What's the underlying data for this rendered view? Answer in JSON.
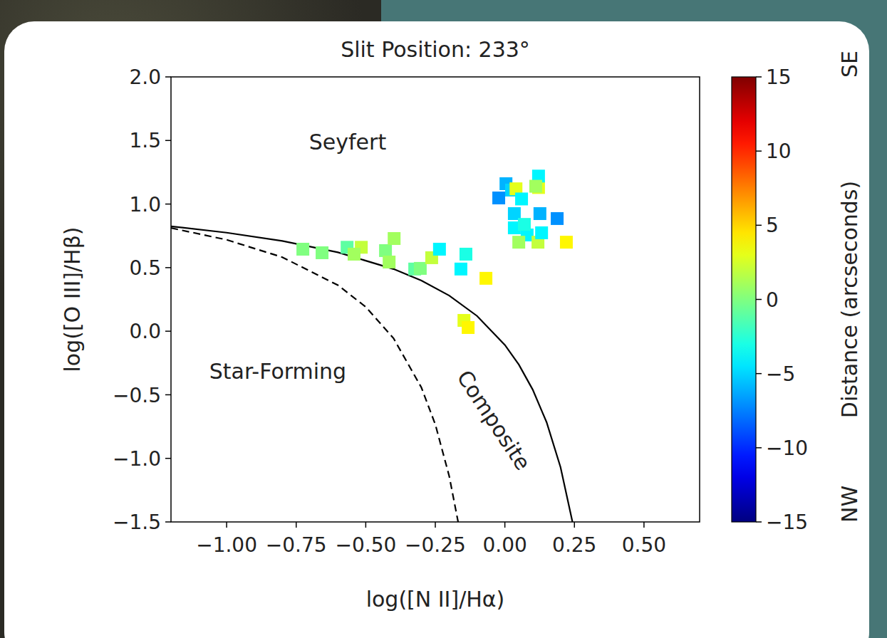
{
  "chart_data": {
    "type": "scatter",
    "title": "Slit Position: 233°",
    "x_label": "log([N II]/Hα)",
    "y_label": "log([O III]/Hβ)",
    "xlim": [
      -1.2,
      0.7
    ],
    "ylim": [
      -1.5,
      2.0
    ],
    "xticks": [
      {
        "value": -1.0,
        "label": "−1.00"
      },
      {
        "value": -0.75,
        "label": "−0.75"
      },
      {
        "value": -0.5,
        "label": "−0.50"
      },
      {
        "value": -0.25,
        "label": "−0.25"
      },
      {
        "value": 0.0,
        "label": "0.00"
      },
      {
        "value": 0.25,
        "label": "0.25"
      },
      {
        "value": 0.5,
        "label": "0.50"
      }
    ],
    "yticks": [
      {
        "value": -1.5,
        "label": "−1.5"
      },
      {
        "value": -1.0,
        "label": "−1.0"
      },
      {
        "value": -0.5,
        "label": "−0.5"
      },
      {
        "value": 0.0,
        "label": "0.0"
      },
      {
        "value": 0.5,
        "label": "0.5"
      },
      {
        "value": 1.0,
        "label": "1.0"
      },
      {
        "value": 1.5,
        "label": "1.5"
      },
      {
        "value": 2.0,
        "label": "2.0"
      }
    ],
    "grid": false,
    "annotations": [
      {
        "text": "Seyfert",
        "x": -0.565,
        "y": 1.485
      },
      {
        "text": "Star-Forming",
        "x": -0.816,
        "y": -0.318
      },
      {
        "text": "Composite",
        "x": -0.04,
        "y": -0.7
      }
    ],
    "series": [
      {
        "type": "line",
        "line_style": "solid",
        "color": "#000000",
        "x": [
          -1.2,
          -1.0,
          -0.8,
          -0.6,
          -0.4,
          -0.3,
          -0.2,
          -0.1,
          0.0,
          0.05,
          0.1,
          0.15,
          0.2,
          0.243
        ],
        "values": [
          0.825,
          0.775,
          0.71,
          0.62,
          0.489,
          0.398,
          0.28,
          0.12,
          -0.108,
          -0.262,
          -0.459,
          -0.716,
          -1.069,
          -1.5
        ]
      },
      {
        "type": "line",
        "line_style": "dashed",
        "color": "#000000",
        "x": [
          -1.2,
          -1.0,
          -0.8,
          -0.6,
          -0.5,
          -0.4,
          -0.3,
          -0.25,
          -0.2,
          -0.168
        ],
        "values": [
          0.812,
          0.719,
          0.582,
          0.362,
          0.191,
          -0.056,
          -0.443,
          -0.733,
          -1.14,
          -1.5
        ]
      },
      {
        "type": "scatter",
        "marker": "square",
        "x": [
          -0.726,
          -0.657,
          -0.567,
          -0.516,
          -0.542,
          -0.429,
          -0.398,
          -0.416,
          -0.324,
          -0.304,
          -0.263,
          -0.235,
          -0.14,
          -0.158,
          -0.068,
          -0.147,
          -0.132,
          0.004,
          -0.022,
          0.024,
          0.04,
          0.06,
          0.121,
          0.121,
          0.111,
          0.034,
          0.034,
          0.08,
          0.126,
          0.188,
          0.05,
          0.119,
          0.132,
          0.221,
          0.07
        ],
        "values": [
          0.645,
          0.617,
          0.66,
          0.66,
          0.606,
          0.634,
          0.729,
          0.544,
          0.489,
          0.494,
          0.578,
          0.645,
          0.606,
          0.489,
          0.416,
          0.085,
          0.029,
          1.16,
          1.048,
          1.11,
          1.12,
          1.04,
          1.13,
          1.22,
          1.14,
          0.925,
          0.813,
          0.757,
          0.925,
          0.886,
          0.7,
          0.7,
          0.774,
          0.7,
          0.84
        ],
        "distance": [
          0,
          0,
          -1,
          2,
          1,
          0,
          1,
          1,
          -1,
          0,
          2,
          -4,
          -3,
          -4,
          4,
          3,
          4,
          -6,
          -7,
          -5,
          3,
          -4,
          3,
          -4,
          1,
          -5,
          -4,
          -4,
          -6,
          -7,
          1,
          2,
          -4,
          4,
          -3
        ]
      }
    ],
    "colorbar": {
      "label": "Distance (arcseconds)",
      "high_label": "SE",
      "low_label": "NW",
      "range": [
        -15,
        15
      ],
      "ticks": [
        {
          "value": -15,
          "label": "−15"
        },
        {
          "value": -10,
          "label": "−10"
        },
        {
          "value": -5,
          "label": "−5"
        },
        0,
        5,
        10,
        15
      ]
    }
  }
}
